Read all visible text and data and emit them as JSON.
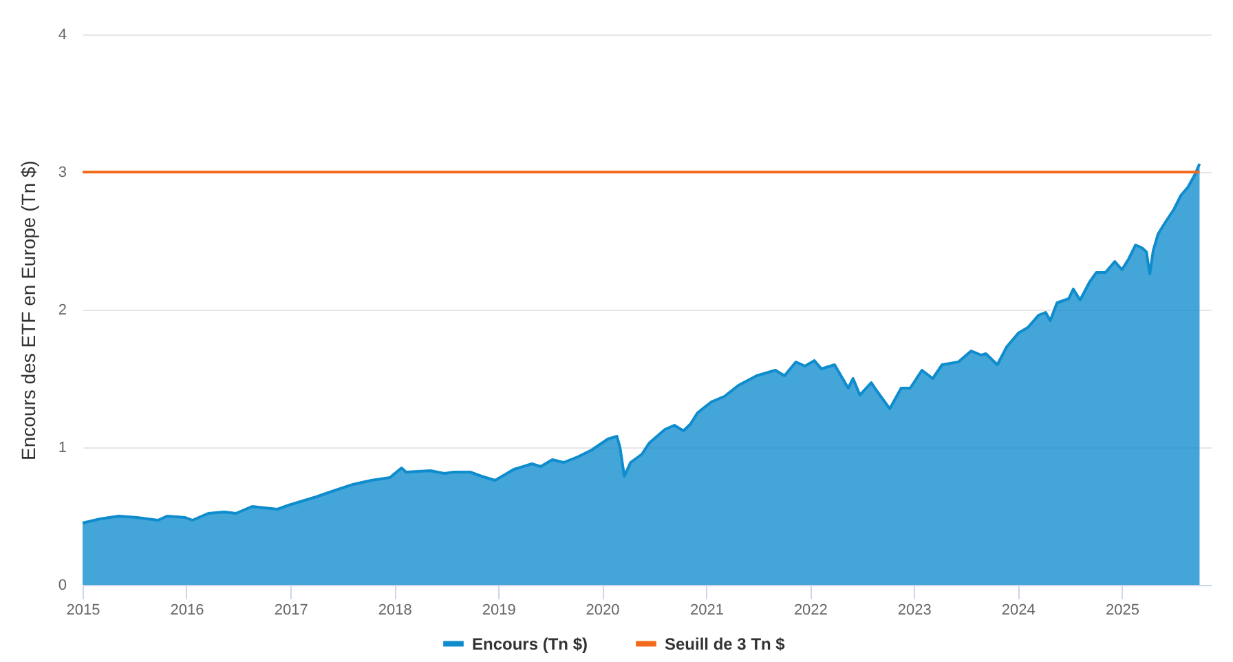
{
  "chart_data": {
    "type": "area",
    "ylabel": "Encours des ETF en Europe (Tn $)",
    "xlim": [
      "2015-01-01",
      "2025-11-10"
    ],
    "ylim": [
      0,
      4
    ],
    "xticks": [
      "2015",
      "2016",
      "2017",
      "2018",
      "2019",
      "2020",
      "2021",
      "2022",
      "2023",
      "2024",
      "2025"
    ],
    "yticks": [
      0,
      1,
      2,
      3,
      4
    ],
    "grid": "y",
    "legend": "bottom",
    "series": [
      {
        "name": "Encours (Tn $)",
        "color": "#0e8ccd",
        "x": [
          "2015-01-01",
          "2015-03-04",
          "2015-05-08",
          "2015-07-12",
          "2015-09-23",
          "2015-10-25",
          "2015-12-28",
          "2016-01-22",
          "2016-03-18",
          "2016-05-13",
          "2016-06-23",
          "2016-08-19",
          "2016-11-16",
          "2016-12-26",
          "2017-04-01",
          "2017-05-27",
          "2017-08-08",
          "2017-10-12",
          "2017-12-16",
          "2018-01-26",
          "2018-02-11",
          "2018-05-08",
          "2018-06-26",
          "2018-07-28",
          "2018-09-24",
          "2018-11-03",
          "2018-12-21",
          "2019-02-25",
          "2019-04-29",
          "2019-05-30",
          "2019-07-10",
          "2019-08-19",
          "2019-10-07",
          "2019-11-25",
          "2020-01-21",
          "2020-02-22",
          "2020-03-04",
          "2020-03-19",
          "2020-04-10",
          "2020-05-20",
          "2020-06-14",
          "2020-08-09",
          "2020-09-11",
          "2020-10-13",
          "2020-11-07",
          "2020-12-01",
          "2021-01-19",
          "2021-03-06",
          "2021-04-24",
          "2021-06-27",
          "2021-09-01",
          "2021-10-03",
          "2021-11-12",
          "2021-12-14",
          "2022-01-16",
          "2022-02-10",
          "2022-03-28",
          "2022-05-15",
          "2022-06-01",
          "2022-06-25",
          "2022-08-04",
          "2022-08-20",
          "2022-10-08",
          "2022-11-17",
          "2022-12-19",
          "2023-01-29",
          "2023-03-08",
          "2023-04-10",
          "2023-06-06",
          "2023-07-21",
          "2023-08-26",
          "2023-09-11",
          "2023-10-21",
          "2023-11-23",
          "2024-01-03",
          "2024-02-05",
          "2024-03-14",
          "2024-04-08",
          "2024-04-24",
          "2024-05-18",
          "2024-06-28",
          "2024-07-14",
          "2024-08-07",
          "2024-09-09",
          "2024-10-03",
          "2024-11-04",
          "2024-12-07",
          "2025-01-01",
          "2025-01-25",
          "2025-02-18",
          "2025-03-12",
          "2025-03-28",
          "2025-04-09",
          "2025-04-21",
          "2025-05-08",
          "2025-06-01",
          "2025-07-03",
          "2025-07-27",
          "2025-08-21",
          "2025-09-14",
          "2025-10-01"
        ],
        "values": [
          0.45,
          0.48,
          0.5,
          0.49,
          0.47,
          0.5,
          0.49,
          0.47,
          0.52,
          0.53,
          0.52,
          0.57,
          0.55,
          0.58,
          0.64,
          0.68,
          0.73,
          0.76,
          0.78,
          0.85,
          0.82,
          0.83,
          0.81,
          0.82,
          0.82,
          0.79,
          0.76,
          0.84,
          0.88,
          0.86,
          0.91,
          0.89,
          0.93,
          0.98,
          1.06,
          1.08,
          1.0,
          0.79,
          0.89,
          0.95,
          1.03,
          1.13,
          1.16,
          1.12,
          1.17,
          1.25,
          1.33,
          1.37,
          1.45,
          1.52,
          1.56,
          1.52,
          1.62,
          1.59,
          1.63,
          1.57,
          1.6,
          1.43,
          1.5,
          1.38,
          1.47,
          1.42,
          1.28,
          1.43,
          1.43,
          1.56,
          1.5,
          1.6,
          1.62,
          1.7,
          1.67,
          1.68,
          1.6,
          1.73,
          1.83,
          1.87,
          1.96,
          1.98,
          1.92,
          2.05,
          2.08,
          2.15,
          2.07,
          2.2,
          2.27,
          2.27,
          2.35,
          2.29,
          2.37,
          2.47,
          2.45,
          2.42,
          2.26,
          2.43,
          2.55,
          2.63,
          2.73,
          2.83,
          2.89,
          2.98,
          3.06
        ]
      },
      {
        "name": "Seuill de 3 Tn $",
        "type": "line",
        "color": "#f26a1b",
        "x": [
          "2015-01-01",
          "2025-10-01"
        ],
        "values": [
          3,
          3
        ]
      }
    ]
  }
}
